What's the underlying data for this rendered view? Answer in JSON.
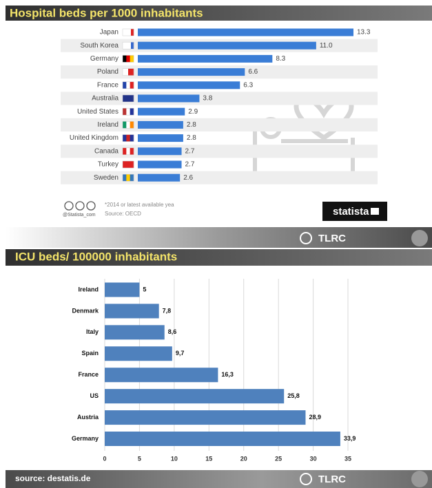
{
  "chart_data": [
    {
      "type": "bar",
      "title": "Hospital beds per 1000 inhabitants",
      "categories": [
        "Japan",
        "South Korea",
        "Germany",
        "Poland",
        "France",
        "Australia",
        "United States",
        "Ireland",
        "United Kingdom",
        "Canada",
        "Turkey",
        "Sweden"
      ],
      "values": [
        13.3,
        11.0,
        8.3,
        6.6,
        6.3,
        3.8,
        2.9,
        2.8,
        2.8,
        2.7,
        2.7,
        2.6
      ],
      "value_labels": [
        "13.3",
        "11.0",
        "8.3",
        "6.6",
        "6.3",
        "3.8",
        "2.9",
        "2.8",
        "2.8",
        "2.7",
        "2.7",
        "2.6"
      ],
      "color": "#3a7dd6",
      "note": "*2014 or latest available yea",
      "source": "Source: OECD",
      "credit": "@Statista_com",
      "brand": "statista",
      "footer_brand": "TLRC"
    },
    {
      "type": "bar",
      "title": "ICU beds/ 100000 inhabitants",
      "categories": [
        "Ireland",
        "Denmark",
        "Italy",
        "Spain",
        "France",
        "US",
        "Austria",
        "Germany"
      ],
      "values": [
        5,
        7.8,
        8.6,
        9.7,
        16.3,
        25.8,
        28.9,
        33.9
      ],
      "value_labels": [
        "5",
        "7,8",
        "8,6",
        "9,7",
        "16,3",
        "25,8",
        "28,9",
        "33,9"
      ],
      "xlim": [
        0,
        35
      ],
      "xticks": [
        0,
        5,
        10,
        15,
        20,
        25,
        30,
        35
      ],
      "grid": true,
      "color": "#4f81bd",
      "source": "source: destatis.de",
      "footer_brand": "TLRC"
    }
  ]
}
